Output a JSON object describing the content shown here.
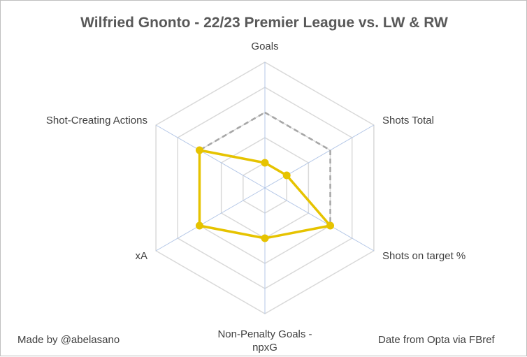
{
  "chart_data": {
    "type": "radar",
    "title": "Wilfried Gnonto - 22/23 Premier League vs. LW & RW",
    "axes": [
      {
        "label": [
          "Goals"
        ]
      },
      {
        "label": [
          "Shots Total"
        ]
      },
      {
        "label": [
          "Shots on target %"
        ]
      },
      {
        "label": [
          "Non-Penalty Goals -",
          "npxG"
        ]
      },
      {
        "label": [
          "xA"
        ]
      },
      {
        "label": [
          "Shot-Creating Actions"
        ]
      }
    ],
    "rings": 5,
    "series": [
      {
        "values": [
          0.2,
          0.2,
          0.6,
          0.4,
          0.6,
          0.6
        ],
        "style": "solid",
        "color": "#e6c300"
      },
      {
        "values": [
          0.6,
          0.6,
          0.6,
          0.4,
          0.6,
          0.6
        ],
        "style": "dashed",
        "color": "#a6a6a6"
      }
    ],
    "grid": true
  },
  "footer": {
    "credit": "Made by @abelasano",
    "source": "Date from Opta via FBref"
  },
  "colors": {
    "grid": "#d9d9d9",
    "spoke": "#b4c7e7",
    "title": "#595959",
    "series_main": "#e6c300",
    "series_avg": "#a6a6a6"
  }
}
